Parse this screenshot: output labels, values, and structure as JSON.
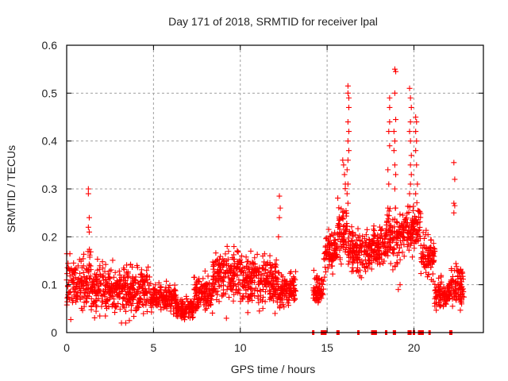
{
  "chart_data": {
    "type": "scatter",
    "title": "Day 171 of 2018, SRMTID for receiver lpal",
    "xlabel": "GPS time / hours",
    "ylabel": "SRMTID / TECUs",
    "xlim": [
      0,
      24
    ],
    "ylim": [
      0,
      0.6
    ],
    "xticks": [
      0,
      5,
      10,
      15,
      20
    ],
    "yticks": [
      0,
      0.1,
      0.2,
      0.3,
      0.4,
      0.5,
      0.6
    ],
    "ytick_labels": [
      "0",
      "0.1",
      "0.2",
      "0.3",
      "0.4",
      "0.5",
      "0.6"
    ],
    "grid": true,
    "marker": "+",
    "color": "#ff0000",
    "series": [
      {
        "name": "SRMTID",
        "description": "dense scatter; envelope by time segment (hours): base median level, spread",
        "segments": [
          {
            "t": [
              0.0,
              1.2
            ],
            "level": 0.1,
            "spread": 0.05,
            "max": 0.2
          },
          {
            "t": [
              1.2,
              1.4
            ],
            "level": 0.12,
            "spread": 0.06,
            "max": 0.3
          },
          {
            "t": [
              1.4,
              3.0
            ],
            "level": 0.09,
            "spread": 0.045,
            "max": 0.2
          },
          {
            "t": [
              3.0,
              4.8
            ],
            "level": 0.09,
            "spread": 0.045,
            "max": 0.21
          },
          {
            "t": [
              4.8,
              6.3
            ],
            "level": 0.07,
            "spread": 0.025,
            "max": 0.12
          },
          {
            "t": [
              6.3,
              7.3
            ],
            "level": 0.05,
            "spread": 0.02,
            "max": 0.1
          },
          {
            "t": [
              7.3,
              8.4
            ],
            "level": 0.08,
            "spread": 0.03,
            "max": 0.15
          },
          {
            "t": [
              8.4,
              9.6
            ],
            "level": 0.12,
            "spread": 0.04,
            "max": 0.18
          },
          {
            "t": [
              9.6,
              10.1
            ],
            "level": 0.12,
            "spread": 0.05,
            "max": 0.22
          },
          {
            "t": [
              10.1,
              12.2
            ],
            "level": 0.11,
            "spread": 0.045,
            "max": 0.2
          },
          {
            "t": [
              12.2,
              13.2
            ],
            "level": 0.09,
            "spread": 0.03,
            "max": 0.15
          },
          {
            "t": [
              14.2,
              14.8
            ],
            "level": 0.09,
            "spread": 0.025,
            "max": 0.13
          },
          {
            "t": [
              14.8,
              15.6
            ],
            "level": 0.17,
            "spread": 0.04,
            "max": 0.22
          },
          {
            "t": [
              15.6,
              16.2
            ],
            "level": 0.2,
            "spread": 0.06,
            "max": 0.36
          },
          {
            "t": [
              16.2,
              17.6
            ],
            "level": 0.17,
            "spread": 0.04,
            "max": 0.29
          },
          {
            "t": [
              17.6,
              18.4
            ],
            "level": 0.18,
            "spread": 0.04,
            "max": 0.25
          },
          {
            "t": [
              18.4,
              19.5
            ],
            "level": 0.2,
            "spread": 0.05,
            "max": 0.26
          },
          {
            "t": [
              19.5,
              20.4
            ],
            "level": 0.22,
            "spread": 0.05,
            "max": 0.3
          },
          {
            "t": [
              20.4,
              21.2
            ],
            "level": 0.16,
            "spread": 0.04,
            "max": 0.25
          },
          {
            "t": [
              21.2,
              22.1
            ],
            "level": 0.08,
            "spread": 0.025,
            "max": 0.14
          },
          {
            "t": [
              22.1,
              22.9
            ],
            "level": 0.1,
            "spread": 0.04,
            "max": 0.21
          }
        ],
        "spikes": [
          [
            1.25,
            0.3
          ],
          [
            1.25,
            0.29
          ],
          [
            1.3,
            0.24
          ],
          [
            1.25,
            0.22
          ],
          [
            1.3,
            0.21
          ],
          [
            12.25,
            0.285
          ],
          [
            12.3,
            0.26
          ],
          [
            12.25,
            0.24
          ],
          [
            12.2,
            0.2
          ],
          [
            15.9,
            0.36
          ],
          [
            15.95,
            0.35
          ],
          [
            16.0,
            0.33
          ],
          [
            16.05,
            0.31
          ],
          [
            16.2,
            0.515
          ],
          [
            16.2,
            0.5
          ],
          [
            16.25,
            0.49
          ],
          [
            16.25,
            0.47
          ],
          [
            16.2,
            0.44
          ],
          [
            16.25,
            0.42
          ],
          [
            16.2,
            0.4
          ],
          [
            16.25,
            0.38
          ],
          [
            16.2,
            0.36
          ],
          [
            16.15,
            0.34
          ],
          [
            16.2,
            0.31
          ],
          [
            16.15,
            0.29
          ],
          [
            16.2,
            0.27
          ],
          [
            18.6,
            0.49
          ],
          [
            18.6,
            0.47
          ],
          [
            18.6,
            0.44
          ],
          [
            18.55,
            0.42
          ],
          [
            18.6,
            0.39
          ],
          [
            18.5,
            0.34
          ],
          [
            18.55,
            0.31
          ],
          [
            18.5,
            0.26
          ],
          [
            18.9,
            0.55
          ],
          [
            18.95,
            0.545
          ],
          [
            18.9,
            0.5
          ],
          [
            18.95,
            0.445
          ],
          [
            18.85,
            0.42
          ],
          [
            18.9,
            0.4
          ],
          [
            18.85,
            0.38
          ],
          [
            18.9,
            0.35
          ],
          [
            18.95,
            0.33
          ],
          [
            18.9,
            0.3
          ],
          [
            19.75,
            0.51
          ],
          [
            19.8,
            0.49
          ],
          [
            19.85,
            0.47
          ],
          [
            19.8,
            0.44
          ],
          [
            19.75,
            0.42
          ],
          [
            19.8,
            0.4
          ],
          [
            19.85,
            0.37
          ],
          [
            19.8,
            0.35
          ],
          [
            19.85,
            0.33
          ],
          [
            19.8,
            0.31
          ],
          [
            19.75,
            0.29
          ],
          [
            20.1,
            0.45
          ],
          [
            20.15,
            0.44
          ],
          [
            20.1,
            0.42
          ],
          [
            20.15,
            0.4
          ],
          [
            20.1,
            0.38
          ],
          [
            20.15,
            0.35
          ],
          [
            20.2,
            0.31
          ],
          [
            20.1,
            0.29
          ],
          [
            22.3,
            0.355
          ],
          [
            22.35,
            0.32
          ],
          [
            22.3,
            0.27
          ],
          [
            22.35,
            0.265
          ],
          [
            22.3,
            0.25
          ],
          [
            3.4,
            0.02
          ],
          [
            9.2,
            0.03
          ],
          [
            11.1,
            0.045
          ],
          [
            12.0,
            0.04
          ],
          [
            19.1,
            0.09
          ],
          [
            19.2,
            0.1
          ]
        ],
        "zero_markers_hours": [
          14.2,
          14.7,
          14.8,
          14.9,
          15.6,
          15.65,
          16.8,
          17.6,
          17.65,
          17.7,
          17.75,
          17.8,
          18.4,
          18.85,
          18.9,
          19.7,
          19.8,
          20.0,
          20.3,
          20.4,
          20.5,
          20.9,
          22.1,
          22.15
        ]
      }
    ]
  }
}
